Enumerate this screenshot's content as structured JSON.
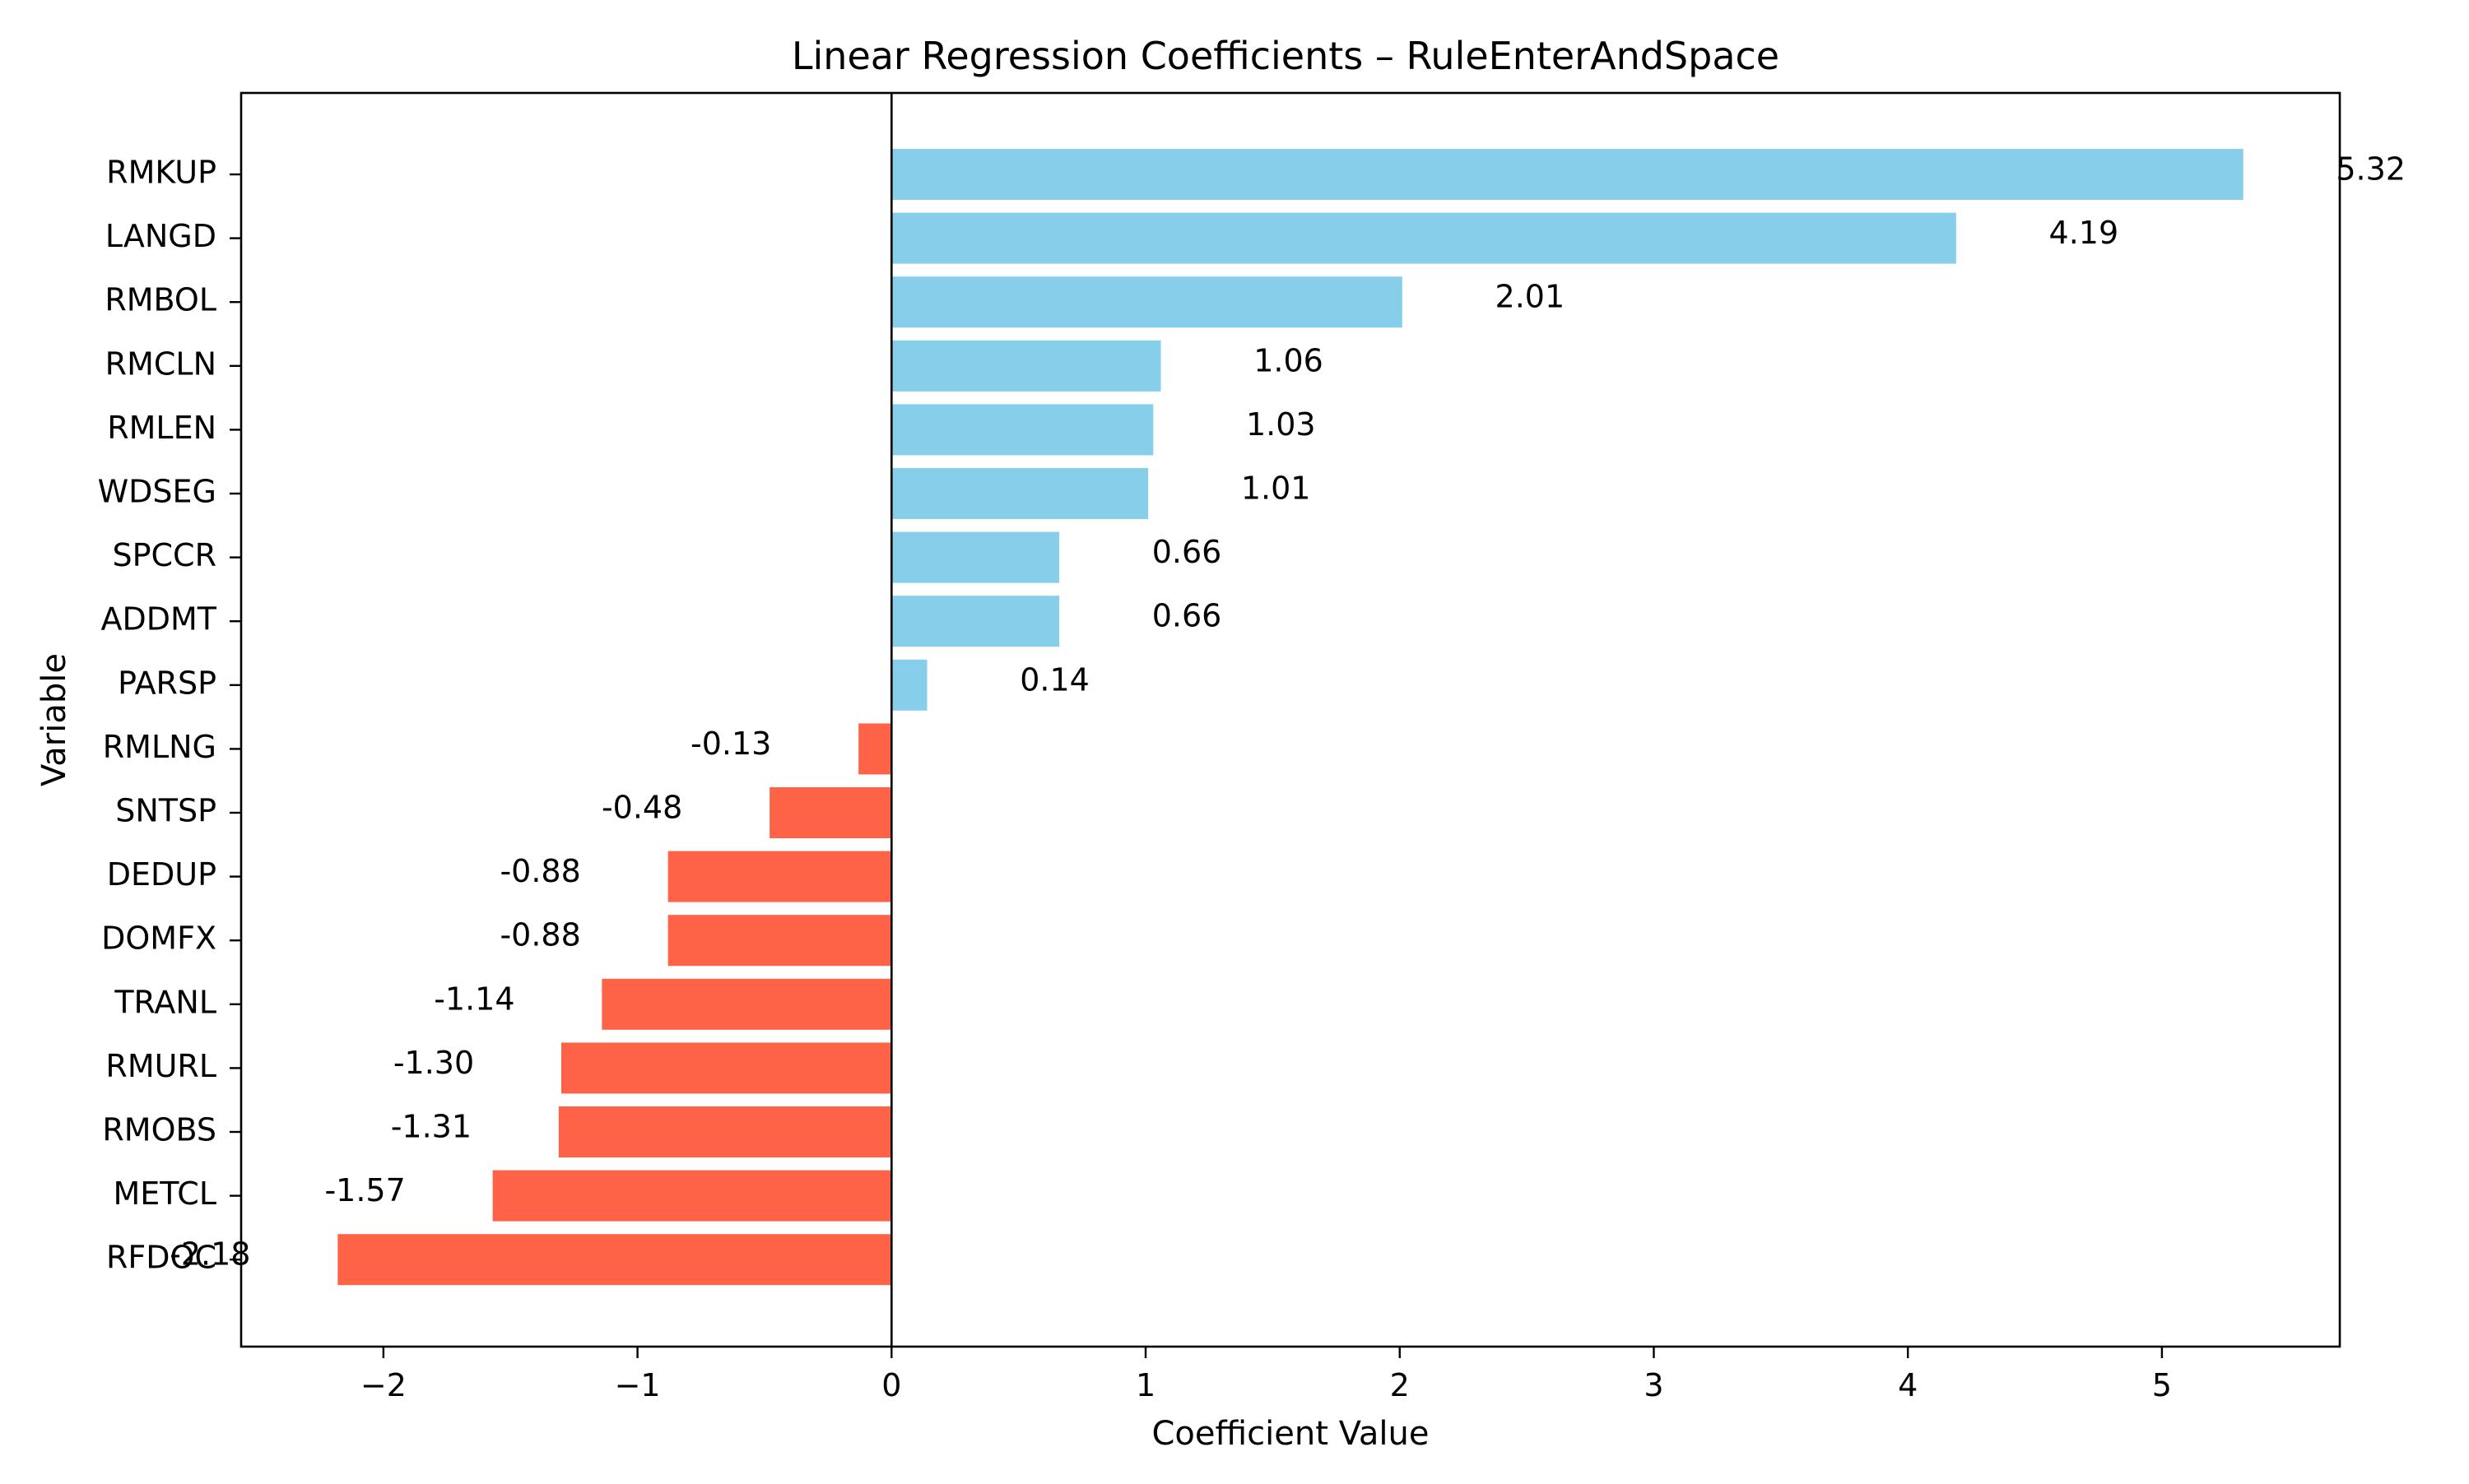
{
  "chart_data": {
    "type": "bar",
    "orientation": "horizontal",
    "title": "Linear Regression Coefficients – RuleEnterAndSpace",
    "xlabel": "Coefficient Value",
    "ylabel": "Variable",
    "xlim": [
      -2.56,
      5.7
    ],
    "xticks": [
      -2,
      -1,
      0,
      1,
      2,
      3,
      4,
      5
    ],
    "xtick_labels": [
      "−2",
      "−1",
      "0",
      "1",
      "2",
      "3",
      "4",
      "5"
    ],
    "zero_line": true,
    "grid": false,
    "legend": "none",
    "colors": {
      "positive": "#87CEEB",
      "negative": "#FF6347",
      "axis": "#000000"
    },
    "categories": [
      "RMKUP",
      "LANGD",
      "RMBOL",
      "RMCLN",
      "RMLEN",
      "WDSEG",
      "SPCCR",
      "ADDMT",
      "PARSP",
      "RMLNG",
      "SNTSP",
      "DEDUP",
      "DOMFX",
      "TRANL",
      "RMURL",
      "RMOBS",
      "METCL",
      "RFDOC"
    ],
    "values": [
      5.32,
      4.19,
      2.01,
      1.06,
      1.03,
      1.01,
      0.66,
      0.66,
      0.14,
      -0.13,
      -0.48,
      -0.88,
      -0.88,
      -1.14,
      -1.3,
      -1.31,
      -1.57,
      -2.18
    ],
    "value_labels": [
      "5.32",
      "4.19",
      "2.01",
      "1.06",
      "1.03",
      "1.01",
      "0.66",
      "0.66",
      "0.14",
      "-0.13",
      "-0.48",
      "-0.88",
      "-0.88",
      "-1.14",
      "-1.30",
      "-1.31",
      "-1.57",
      "-2.18"
    ]
  }
}
